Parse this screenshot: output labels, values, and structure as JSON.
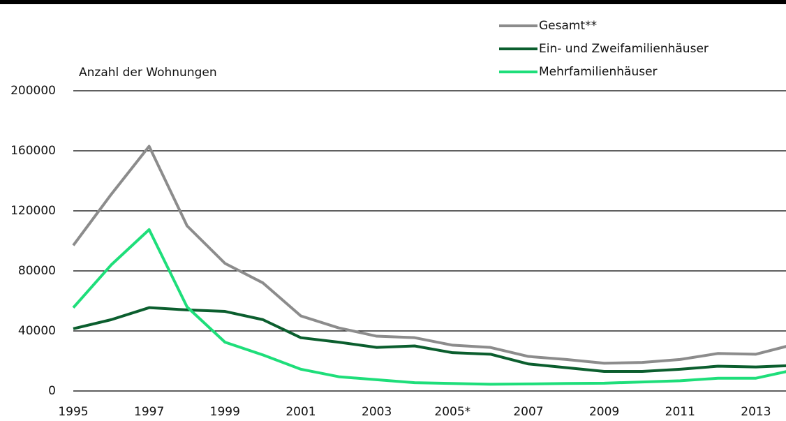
{
  "chart_data": {
    "type": "line",
    "y_axis_label": "Anzahl der Wohnungen",
    "categories": [
      "1995",
      null,
      "1997",
      null,
      "1999",
      null,
      "2001",
      null,
      "2003",
      null,
      "2005*",
      null,
      "2007",
      null,
      "2009",
      null,
      "2011",
      null,
      "2013",
      null
    ],
    "series": [
      {
        "name": "Gesamt**",
        "color": "#8c8c8c",
        "values": [
          97000,
          131000,
          163000,
          110000,
          85000,
          72000,
          50000,
          42000,
          36500,
          35500,
          30500,
          29000,
          23000,
          21000,
          18500,
          19000,
          21000,
          25000,
          24500,
          31000
        ]
      },
      {
        "name": "Ein- und Zweifamilienhäuser",
        "color": "#0b5e2e",
        "values": [
          41500,
          47500,
          55500,
          54000,
          53000,
          47500,
          35500,
          32500,
          29000,
          30000,
          25500,
          24500,
          18000,
          15500,
          13000,
          13000,
          14500,
          16500,
          16000,
          17000
        ]
      },
      {
        "name": "Mehrfamilienhäuser",
        "color": "#1ede7a",
        "values": [
          55500,
          84000,
          107500,
          56000,
          32500,
          24000,
          14500,
          9500,
          7500,
          5500,
          5000,
          4500,
          4700,
          5000,
          5200,
          6000,
          6800,
          8500,
          8500,
          14000
        ]
      }
    ],
    "ylim": [
      0,
      200000
    ],
    "yticks": [
      0,
      40000,
      80000,
      120000,
      160000,
      200000
    ],
    "grid": true
  }
}
